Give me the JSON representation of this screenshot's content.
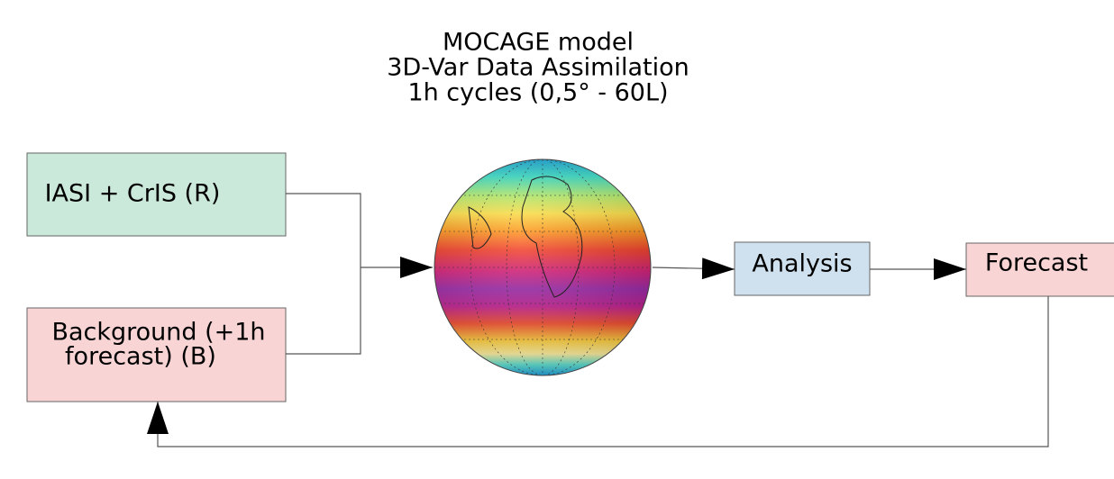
{
  "title": [
    "MOCAGE model",
    "3D-Var Data Assimilation",
    "1h cycles (0,5°  - 60L)"
  ],
  "nodes": [
    {
      "label": [
        "IASI + CrIS (R)"
      ]
    },
    {
      "label": [
        "Background (+1h",
        "forecast) (B)"
      ]
    },
    {
      "label": [
        "Analysis"
      ]
    },
    {
      "label": [
        "Forecast"
      ]
    }
  ]
}
